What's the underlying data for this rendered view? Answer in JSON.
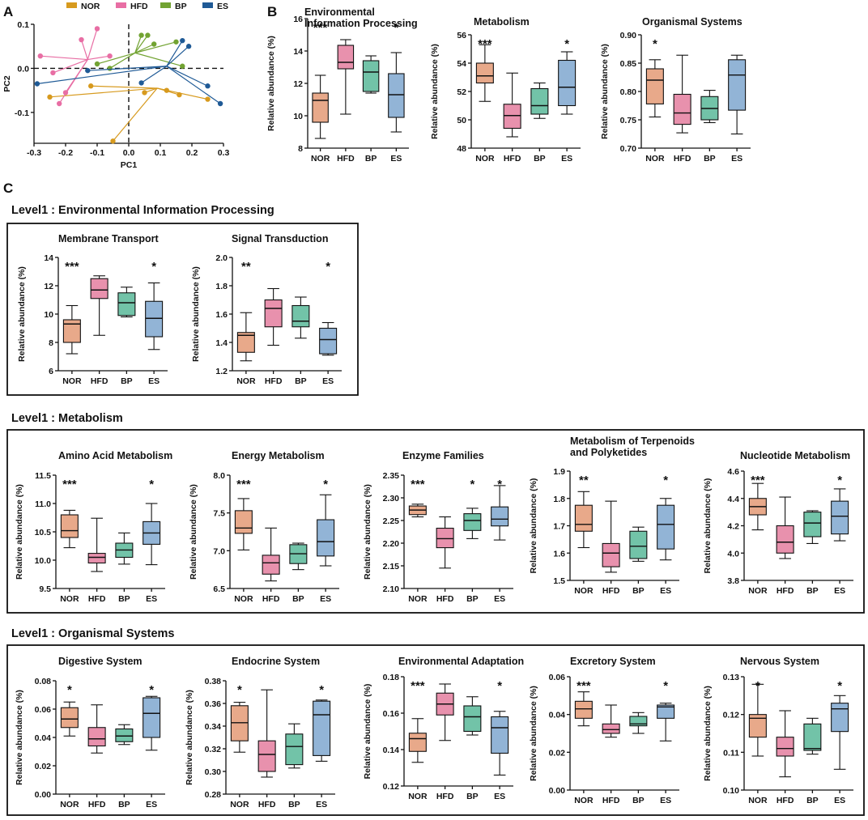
{
  "panel_letters": {
    "a": "A",
    "b": "B",
    "c": "C"
  },
  "groups": [
    "NOR",
    "HFD",
    "BP",
    "ES"
  ],
  "colors": {
    "NOR": "#e8a98a",
    "HFD": "#e891ad",
    "BP": "#72c3a8",
    "ES": "#92b4d6",
    "pca_NOR": "#d79a1e",
    "pca_HFD": "#e86ea4",
    "pca_BP": "#72a332",
    "pca_ES": "#1f5a96"
  },
  "ylabel": "Relative abundance (%)",
  "sections": {
    "env": "Level1 : Environmental Information Processing",
    "met": "Level1 : Metabolism",
    "org": "Level1 : Organismal Systems"
  },
  "chart_data": [
    {
      "id": "pca",
      "type": "scatter",
      "xlabel": "PC1",
      "ylabel": "PC2",
      "xlim": [
        -0.3,
        0.3
      ],
      "ylim": [
        -0.17,
        0.1
      ],
      "xticks": [
        "-0.3",
        "-0.2",
        "-0.1",
        "0.0",
        "0.1",
        "0.2",
        "0.3"
      ],
      "xtick_values": [
        -0.3,
        -0.2,
        -0.1,
        0.0,
        0.1,
        0.2,
        0.3
      ],
      "yticks": [
        "0.1",
        "0.0",
        "-0.1"
      ],
      "ytick_values": [
        0.1,
        0.0,
        -0.1
      ],
      "legend": [
        "NOR",
        "HFD",
        "BP",
        "ES"
      ],
      "series": [
        {
          "name": "NOR",
          "centroid": [
            0.09,
            -0.045
          ],
          "points": [
            [
              -0.25,
              -0.065
            ],
            [
              -0.12,
              -0.04
            ],
            [
              -0.05,
              -0.165
            ],
            [
              0.05,
              -0.055
            ],
            [
              0.12,
              -0.05
            ],
            [
              0.16,
              -0.06
            ],
            [
              0.25,
              -0.07
            ]
          ]
        },
        {
          "name": "HFD",
          "centroid": [
            -0.13,
            0.02
          ],
          "points": [
            [
              -0.28,
              0.028
            ],
            [
              -0.22,
              -0.08
            ],
            [
              -0.2,
              -0.055
            ],
            [
              -0.15,
              0.065
            ],
            [
              -0.1,
              0.09
            ],
            [
              -0.06,
              0.028
            ],
            [
              -0.24,
              -0.01
            ]
          ]
        },
        {
          "name": "BP",
          "centroid": [
            0.02,
            0.035
          ],
          "points": [
            [
              -0.1,
              0.01
            ],
            [
              -0.06,
              0.0
            ],
            [
              0.04,
              0.075
            ],
            [
              0.06,
              0.075
            ],
            [
              0.08,
              0.055
            ],
            [
              0.15,
              0.06
            ],
            [
              0.17,
              0.005
            ]
          ]
        },
        {
          "name": "ES",
          "centroid": [
            0.12,
            0.005
          ],
          "points": [
            [
              -0.29,
              -0.035
            ],
            [
              0.04,
              -0.033
            ],
            [
              0.17,
              0.063
            ],
            [
              0.19,
              0.05
            ],
            [
              0.25,
              -0.04
            ],
            [
              0.29,
              -0.08
            ],
            [
              -0.13,
              -0.005
            ]
          ]
        }
      ]
    },
    {
      "id": "B1",
      "type": "box",
      "title": "Environmental\nInformation Processing",
      "ylim": [
        8,
        16
      ],
      "yticks": [
        "8",
        "10",
        "12",
        "14",
        "16"
      ],
      "ytick_values": [
        8,
        10,
        12,
        14,
        16
      ],
      "sig": [
        "***",
        "",
        "",
        "*"
      ],
      "boxes": [
        {
          "min": 8.6,
          "q1": 9.6,
          "median": 10.95,
          "q3": 11.4,
          "max": 12.5
        },
        {
          "min": 10.1,
          "q1": 12.9,
          "median": 13.3,
          "q3": 14.35,
          "max": 14.7
        },
        {
          "min": 11.4,
          "q1": 11.5,
          "median": 12.7,
          "q3": 13.4,
          "max": 13.7
        },
        {
          "min": 9.0,
          "q1": 9.9,
          "median": 11.3,
          "q3": 12.6,
          "max": 13.9
        }
      ]
    },
    {
      "id": "B2",
      "type": "box",
      "title": "Metabolism",
      "ylim": [
        48,
        56
      ],
      "yticks": [
        "48",
        "50",
        "52",
        "54",
        "56"
      ],
      "ytick_values": [
        48,
        50,
        52,
        54,
        56
      ],
      "sig": [
        "***",
        "",
        "",
        "*"
      ],
      "boxes": [
        {
          "min": 51.3,
          "q1": 52.6,
          "median": 53.1,
          "q3": 54.0,
          "max": 55.3
        },
        {
          "min": 48.8,
          "q1": 49.4,
          "median": 50.3,
          "q3": 51.1,
          "max": 53.3
        },
        {
          "min": 50.1,
          "q1": 50.4,
          "median": 51.0,
          "q3": 52.2,
          "max": 52.6
        },
        {
          "min": 50.4,
          "q1": 51.0,
          "median": 52.3,
          "q3": 54.2,
          "max": 54.8
        }
      ]
    },
    {
      "id": "B3",
      "type": "box",
      "title": "Organismal Systems",
      "ylim": [
        0.7,
        0.9
      ],
      "yticks": [
        "0.70",
        "0.75",
        "0.80",
        "0.85",
        "0.90"
      ],
      "ytick_values": [
        0.7,
        0.75,
        0.8,
        0.85,
        0.9
      ],
      "sig": [
        "*",
        "",
        "",
        ""
      ],
      "boxes": [
        {
          "min": 0.755,
          "q1": 0.778,
          "median": 0.82,
          "q3": 0.84,
          "max": 0.856
        },
        {
          "min": 0.727,
          "q1": 0.742,
          "median": 0.762,
          "q3": 0.795,
          "max": 0.864
        },
        {
          "min": 0.745,
          "q1": 0.75,
          "median": 0.77,
          "q3": 0.791,
          "max": 0.802
        },
        {
          "min": 0.725,
          "q1": 0.767,
          "median": 0.829,
          "q3": 0.856,
          "max": 0.864
        }
      ]
    },
    {
      "id": "E1",
      "type": "box",
      "title": "Membrane Transport",
      "ylim": [
        6,
        14
      ],
      "yticks": [
        "6",
        "8",
        "10",
        "12",
        "14"
      ],
      "ytick_values": [
        6,
        8,
        10,
        12,
        14
      ],
      "sig": [
        "***",
        "",
        "",
        "*"
      ],
      "boxes": [
        {
          "min": 7.2,
          "q1": 8.0,
          "median": 9.3,
          "q3": 9.6,
          "max": 10.6
        },
        {
          "min": 8.5,
          "q1": 11.1,
          "median": 11.7,
          "q3": 12.5,
          "max": 12.7
        },
        {
          "min": 9.8,
          "q1": 9.9,
          "median": 10.8,
          "q3": 11.5,
          "max": 11.9
        },
        {
          "min": 7.5,
          "q1": 8.4,
          "median": 9.7,
          "q3": 10.9,
          "max": 12.2
        }
      ]
    },
    {
      "id": "E2",
      "type": "box",
      "title": "Signal Transduction",
      "ylim": [
        1.2,
        2.0
      ],
      "yticks": [
        "1.2",
        "1.4",
        "1.6",
        "1.8",
        "2.0"
      ],
      "ytick_values": [
        1.2,
        1.4,
        1.6,
        1.8,
        2.0
      ],
      "sig": [
        "**",
        "",
        "",
        "*"
      ],
      "boxes": [
        {
          "min": 1.27,
          "q1": 1.33,
          "median": 1.45,
          "q3": 1.47,
          "max": 1.61
        },
        {
          "min": 1.38,
          "q1": 1.51,
          "median": 1.64,
          "q3": 1.7,
          "max": 1.78
        },
        {
          "min": 1.43,
          "q1": 1.51,
          "median": 1.55,
          "q3": 1.66,
          "max": 1.72
        },
        {
          "min": 1.31,
          "q1": 1.32,
          "median": 1.42,
          "q3": 1.5,
          "max": 1.54
        }
      ]
    },
    {
      "id": "M1",
      "type": "box",
      "title": "Amino Acid Metabolism",
      "ylim": [
        9.5,
        11.5
      ],
      "yticks": [
        "9.5",
        "10.0",
        "10.5",
        "11.0",
        "11.5"
      ],
      "ytick_values": [
        9.5,
        10.0,
        10.5,
        11.0,
        11.5
      ],
      "sig": [
        "***",
        "",
        "",
        "*"
      ],
      "boxes": [
        {
          "min": 10.22,
          "q1": 10.4,
          "median": 10.52,
          "q3": 10.8,
          "max": 10.88
        },
        {
          "min": 9.8,
          "q1": 9.95,
          "median": 10.05,
          "q3": 10.12,
          "max": 10.74
        },
        {
          "min": 9.93,
          "q1": 10.05,
          "median": 10.18,
          "q3": 10.3,
          "max": 10.48
        },
        {
          "min": 9.92,
          "q1": 10.28,
          "median": 10.48,
          "q3": 10.68,
          "max": 11.0
        }
      ]
    },
    {
      "id": "M2",
      "type": "box",
      "title": "Energy Metabolism",
      "ylim": [
        6.5,
        8.0
      ],
      "yticks": [
        "6.5",
        "7.0",
        "7.5",
        "8.0"
      ],
      "ytick_values": [
        6.5,
        7.0,
        7.5,
        8.0
      ],
      "sig": [
        "***",
        "",
        "",
        "*"
      ],
      "boxes": [
        {
          "min": 7.01,
          "q1": 7.23,
          "median": 7.3,
          "q3": 7.53,
          "max": 7.69
        },
        {
          "min": 6.6,
          "q1": 6.69,
          "median": 6.84,
          "q3": 6.94,
          "max": 7.3
        },
        {
          "min": 6.75,
          "q1": 6.83,
          "median": 6.96,
          "q3": 7.08,
          "max": 7.1
        },
        {
          "min": 6.8,
          "q1": 6.93,
          "median": 7.12,
          "q3": 7.41,
          "max": 7.74
        }
      ]
    },
    {
      "id": "M3",
      "type": "box",
      "title": "Enzyme Families",
      "ylim": [
        2.1,
        2.35
      ],
      "yticks": [
        "2.10",
        "2.15",
        "2.20",
        "2.25",
        "2.30",
        "2.35"
      ],
      "ytick_values": [
        2.1,
        2.15,
        2.2,
        2.25,
        2.3,
        2.35
      ],
      "sig": [
        "***",
        "",
        "*",
        "*"
      ],
      "boxes": [
        {
          "min": 2.258,
          "q1": 2.263,
          "median": 2.273,
          "q3": 2.282,
          "max": 2.286
        },
        {
          "min": 2.145,
          "q1": 2.19,
          "median": 2.21,
          "q3": 2.233,
          "max": 2.258
        },
        {
          "min": 2.21,
          "q1": 2.228,
          "median": 2.25,
          "q3": 2.265,
          "max": 2.277
        },
        {
          "min": 2.207,
          "q1": 2.238,
          "median": 2.253,
          "q3": 2.28,
          "max": 2.327
        }
      ]
    },
    {
      "id": "M4",
      "type": "box",
      "title": "Metabolism of Terpenoids\nand Polyketides",
      "ylim": [
        1.5,
        1.9
      ],
      "yticks": [
        "1.5",
        "1.6",
        "1.7",
        "1.8",
        "1.9"
      ],
      "ytick_values": [
        1.5,
        1.6,
        1.7,
        1.8,
        1.9
      ],
      "sig": [
        "**",
        "",
        "",
        "*"
      ],
      "boxes": [
        {
          "min": 1.62,
          "q1": 1.68,
          "median": 1.705,
          "q3": 1.775,
          "max": 1.825
        },
        {
          "min": 1.53,
          "q1": 1.55,
          "median": 1.6,
          "q3": 1.635,
          "max": 1.79
        },
        {
          "min": 1.57,
          "q1": 1.58,
          "median": 1.625,
          "q3": 1.68,
          "max": 1.695
        },
        {
          "min": 1.575,
          "q1": 1.615,
          "median": 1.705,
          "q3": 1.775,
          "max": 1.8
        }
      ]
    },
    {
      "id": "M5",
      "type": "box",
      "title": "Nucleotide Metabolism",
      "ylim": [
        3.8,
        4.6
      ],
      "yticks": [
        "3.8",
        "4.0",
        "4.2",
        "4.4",
        "4.6"
      ],
      "ytick_values": [
        3.8,
        4.0,
        4.2,
        4.4,
        4.6
      ],
      "sig": [
        "***",
        "",
        "",
        "*"
      ],
      "boxes": [
        {
          "min": 4.17,
          "q1": 4.28,
          "median": 4.34,
          "q3": 4.4,
          "max": 4.51
        },
        {
          "min": 3.96,
          "q1": 4.0,
          "median": 4.08,
          "q3": 4.2,
          "max": 4.41
        },
        {
          "min": 4.07,
          "q1": 4.12,
          "median": 4.22,
          "q3": 4.3,
          "max": 4.31
        },
        {
          "min": 4.09,
          "q1": 4.14,
          "median": 4.27,
          "q3": 4.38,
          "max": 4.47
        }
      ]
    },
    {
      "id": "O1",
      "type": "box",
      "title": "Digestive System",
      "ylim": [
        0.0,
        0.08
      ],
      "yticks": [
        "0.00",
        "0.02",
        "0.04",
        "0.06",
        "0.08"
      ],
      "ytick_values": [
        0,
        0.02,
        0.04,
        0.06,
        0.08
      ],
      "sig": [
        "*",
        "",
        "",
        "*"
      ],
      "boxes": [
        {
          "min": 0.041,
          "q1": 0.047,
          "median": 0.053,
          "q3": 0.061,
          "max": 0.065
        },
        {
          "min": 0.029,
          "q1": 0.034,
          "median": 0.039,
          "q3": 0.047,
          "max": 0.063
        },
        {
          "min": 0.035,
          "q1": 0.037,
          "median": 0.041,
          "q3": 0.046,
          "max": 0.049
        },
        {
          "min": 0.031,
          "q1": 0.04,
          "median": 0.057,
          "q3": 0.068,
          "max": 0.069
        }
      ]
    },
    {
      "id": "O2",
      "type": "box",
      "title": "Endocrine System",
      "ylim": [
        0.28,
        0.38
      ],
      "yticks": [
        "0.28",
        "0.30",
        "0.32",
        "0.34",
        "0.36",
        "0.38"
      ],
      "ytick_values": [
        0.28,
        0.3,
        0.32,
        0.34,
        0.36,
        0.38
      ],
      "sig": [
        "*",
        "",
        "",
        "*"
      ],
      "boxes": [
        {
          "min": 0.317,
          "q1": 0.327,
          "median": 0.343,
          "q3": 0.358,
          "max": 0.361
        },
        {
          "min": 0.295,
          "q1": 0.3,
          "median": 0.315,
          "q3": 0.327,
          "max": 0.372
        },
        {
          "min": 0.303,
          "q1": 0.306,
          "median": 0.322,
          "q3": 0.333,
          "max": 0.342
        },
        {
          "min": 0.309,
          "q1": 0.314,
          "median": 0.35,
          "q3": 0.362,
          "max": 0.363
        }
      ]
    },
    {
      "id": "O3",
      "type": "box",
      "title": "Environmental Adaptation",
      "ylim": [
        0.12,
        0.18
      ],
      "yticks": [
        "0.12",
        "0.14",
        "0.16",
        "0.18"
      ],
      "ytick_values": [
        0.12,
        0.14,
        0.16,
        0.18
      ],
      "sig": [
        "***",
        "",
        "",
        "*"
      ],
      "boxes": [
        {
          "min": 0.133,
          "q1": 0.139,
          "median": 0.146,
          "q3": 0.149,
          "max": 0.157
        },
        {
          "min": 0.145,
          "q1": 0.159,
          "median": 0.165,
          "q3": 0.171,
          "max": 0.176
        },
        {
          "min": 0.148,
          "q1": 0.15,
          "median": 0.158,
          "q3": 0.164,
          "max": 0.169
        },
        {
          "min": 0.126,
          "q1": 0.138,
          "median": 0.152,
          "q3": 0.158,
          "max": 0.161
        }
      ]
    },
    {
      "id": "O4",
      "type": "box",
      "title": "Excretory System",
      "ylim": [
        0.0,
        0.06
      ],
      "yticks": [
        "0.00",
        "0.02",
        "0.04",
        "0.06"
      ],
      "ytick_values": [
        0,
        0.02,
        0.04,
        0.06
      ],
      "sig": [
        "***",
        "",
        "",
        "*"
      ],
      "boxes": [
        {
          "min": 0.034,
          "q1": 0.038,
          "median": 0.043,
          "q3": 0.047,
          "max": 0.052
        },
        {
          "min": 0.028,
          "q1": 0.03,
          "median": 0.032,
          "q3": 0.035,
          "max": 0.045
        },
        {
          "min": 0.03,
          "q1": 0.034,
          "median": 0.035,
          "q3": 0.039,
          "max": 0.041
        },
        {
          "min": 0.026,
          "q1": 0.038,
          "median": 0.044,
          "q3": 0.045,
          "max": 0.046
        }
      ]
    },
    {
      "id": "O5",
      "type": "box",
      "title": "Nervous System",
      "ylim": [
        0.1,
        0.13
      ],
      "yticks": [
        "0.10",
        "0.11",
        "0.12",
        "0.13"
      ],
      "ytick_values": [
        0.1,
        0.11,
        0.12,
        0.13
      ],
      "sig": [
        "*",
        "",
        "",
        "*"
      ],
      "boxes": [
        {
          "min": 0.109,
          "q1": 0.114,
          "median": 0.119,
          "q3": 0.12,
          "max": 0.128
        },
        {
          "min": 0.1035,
          "q1": 0.109,
          "median": 0.111,
          "q3": 0.114,
          "max": 0.121
        },
        {
          "min": 0.1095,
          "q1": 0.1105,
          "median": 0.111,
          "q3": 0.1175,
          "max": 0.119
        },
        {
          "min": 0.1055,
          "q1": 0.1155,
          "median": 0.1215,
          "q3": 0.123,
          "max": 0.125
        }
      ]
    }
  ]
}
